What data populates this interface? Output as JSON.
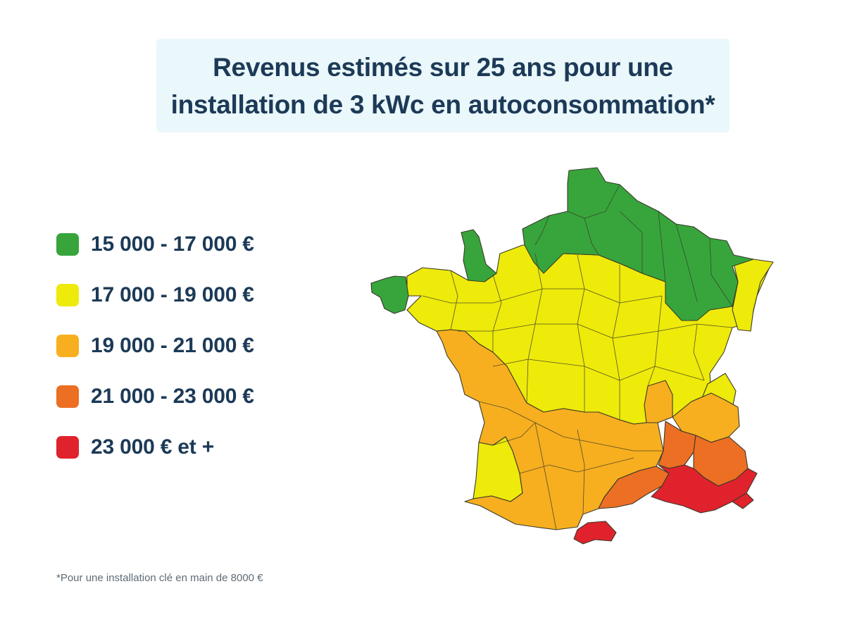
{
  "title": {
    "line1": "Revenus estimés sur 25 ans pour une",
    "line2": "installation de 3 kWc en autoconsommation*"
  },
  "legend": [
    {
      "label": "15 000 - 17 000 €",
      "color": "#37a53c"
    },
    {
      "label": "17 000 - 19 000 €",
      "color": "#eeea0a"
    },
    {
      "label": "19 000 - 21 000 €",
      "color": "#f7af1f"
    },
    {
      "label": "21 000 - 23 000 €",
      "color": "#ec6f23"
    },
    {
      "label": "23 000 € et +",
      "color": "#e0222c"
    }
  ],
  "footnote": "*Pour une installation clé en main de 8000 €",
  "colors": {
    "title_text": "#1c3a57",
    "title_background": "#eaf7fb",
    "department_border": "#3a3a2a"
  }
}
